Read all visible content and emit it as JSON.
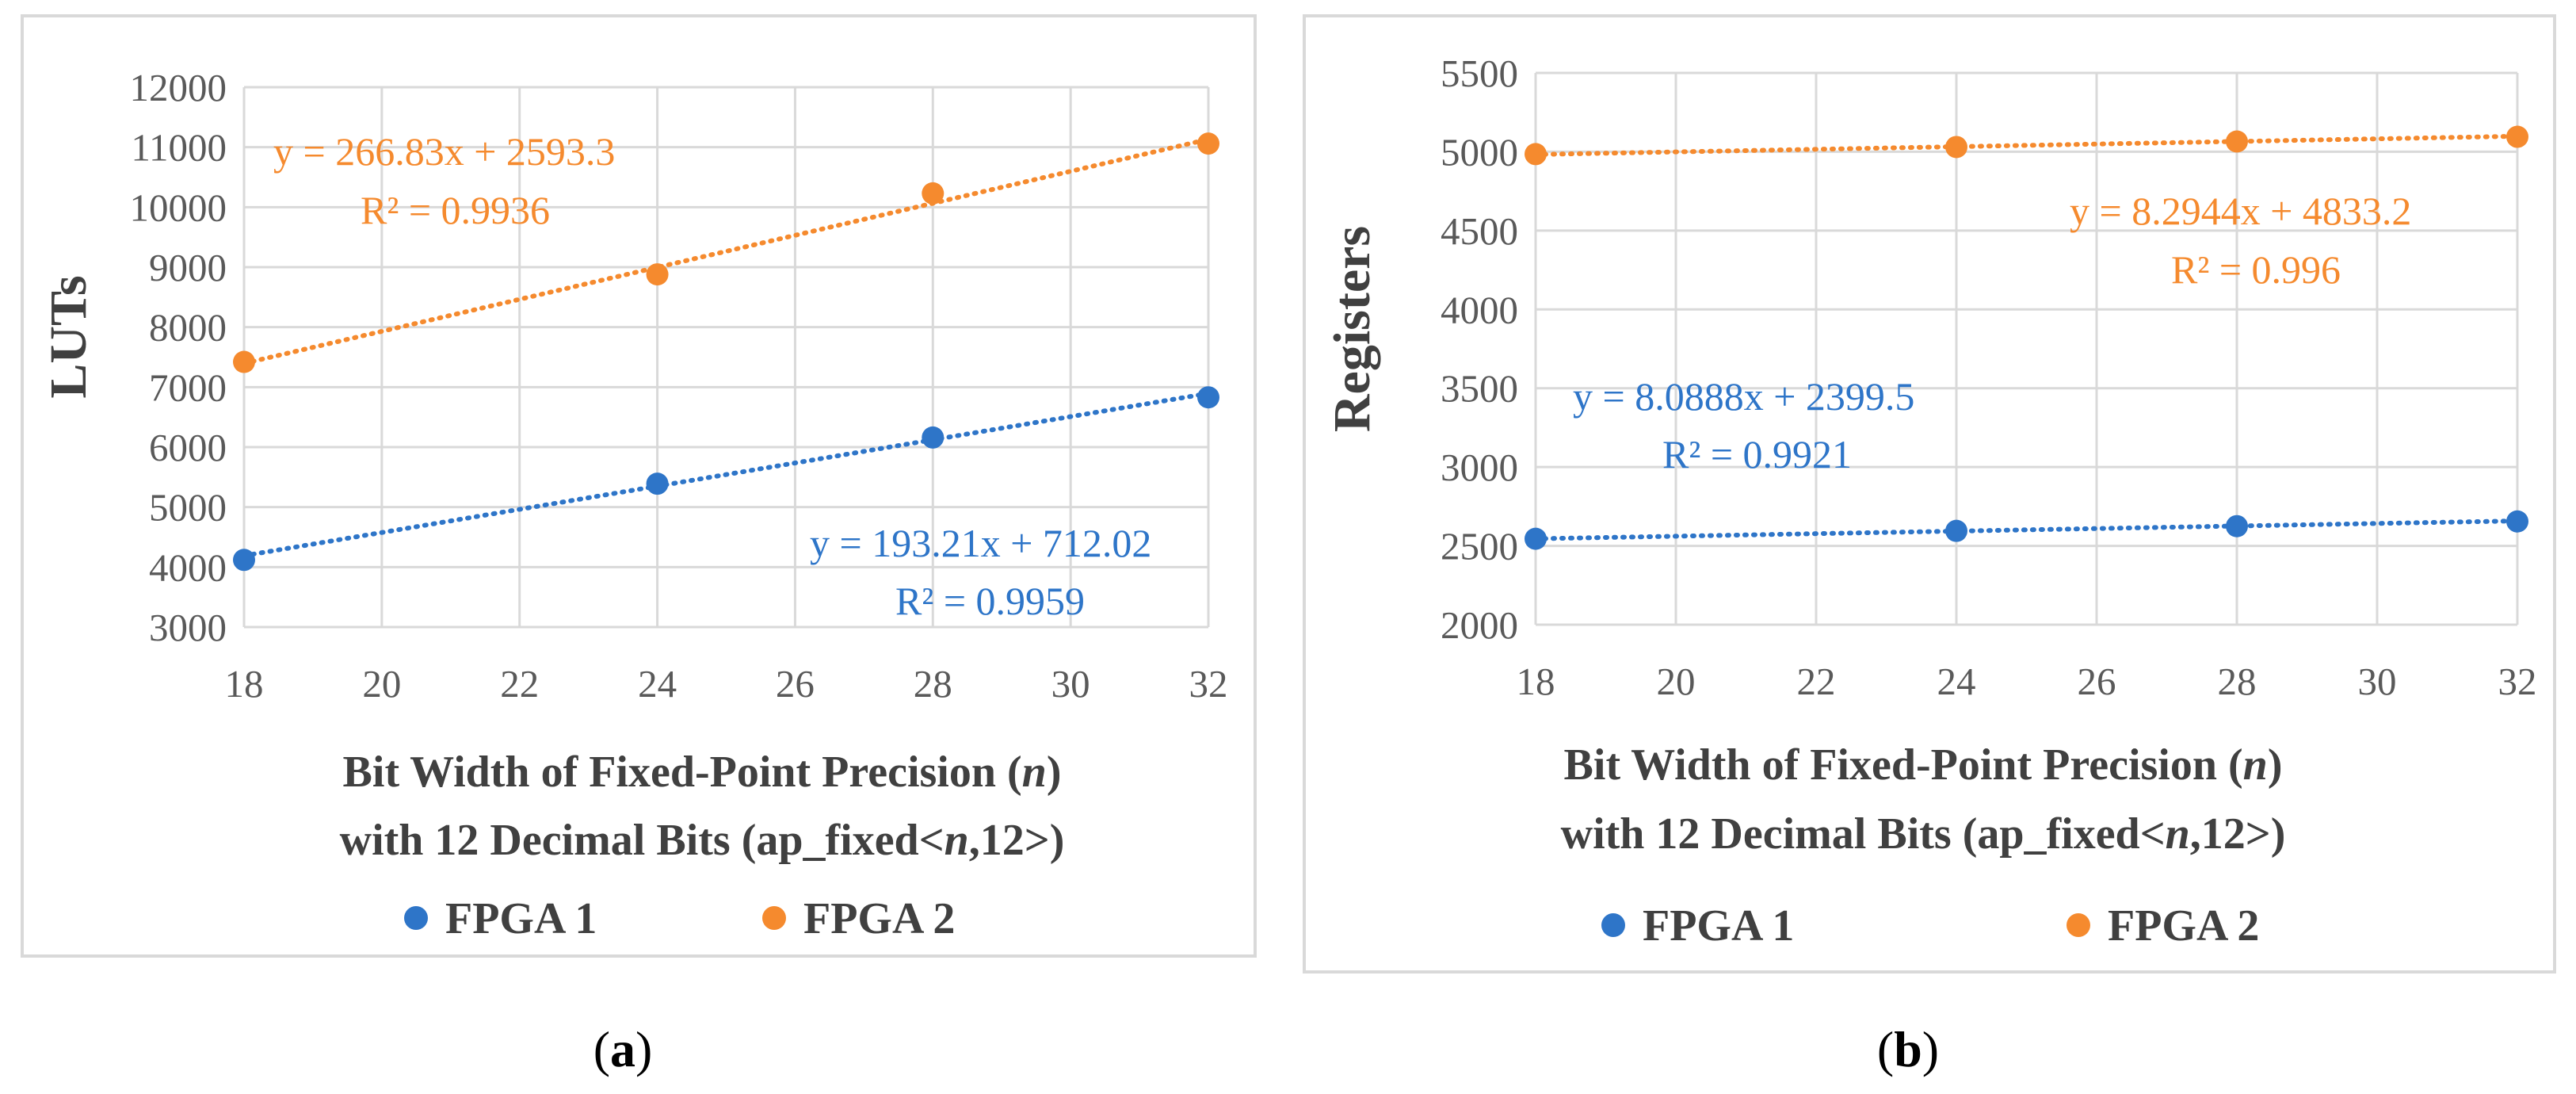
{
  "colors": {
    "fpga1": "#2e75c8",
    "fpga2": "#f58a2e",
    "grid": "#d9d9d9",
    "axis_text": "#595959",
    "label_text": "#404040",
    "frame": "#d9d9d9"
  },
  "chart_data": [
    {
      "type": "scatter",
      "panel_label": "(a)",
      "ylabel": "LUTs",
      "xlabel_line1": "Bit Width of Fixed-Point Precision (n)",
      "xlabel_line2": "with 12 Decimal Bits (ap_fixed<n,12>)",
      "xlim": [
        18,
        32
      ],
      "xticks": [
        18,
        20,
        22,
        24,
        26,
        28,
        30,
        32
      ],
      "ylim": [
        3000,
        12000
      ],
      "yticks": [
        3000,
        4000,
        5000,
        6000,
        7000,
        8000,
        9000,
        10000,
        11000,
        12000
      ],
      "series": [
        {
          "name": "FPGA 1",
          "x": [
            18,
            24,
            28,
            32
          ],
          "y": [
            4120,
            5390,
            6160,
            6830
          ],
          "trendline": {
            "slope": 193.21,
            "intercept": 712.02
          },
          "equation": "y = 193.21x + 712.02",
          "r2": "R² = 0.9959"
        },
        {
          "name": "FPGA 2",
          "x": [
            18,
            24,
            28,
            32
          ],
          "y": [
            7420,
            8880,
            10230,
            11060
          ],
          "trendline": {
            "slope": 266.83,
            "intercept": 2593.3
          },
          "equation": "y = 266.83x + 2593.3",
          "r2": "R² = 0.9936"
        }
      ],
      "legend": [
        "FPGA 1",
        "FPGA 2"
      ],
      "legend_position": "bottom"
    },
    {
      "type": "scatter",
      "panel_label": "(b)",
      "ylabel": "Registers",
      "xlabel_line1": "Bit Width of Fixed-Point Precision (n)",
      "xlabel_line2": "with 12 Decimal Bits (ap_fixed<n,12>)",
      "xlim": [
        18,
        32
      ],
      "xticks": [
        18,
        20,
        22,
        24,
        26,
        28,
        30,
        32
      ],
      "ylim": [
        2000,
        5500
      ],
      "yticks": [
        2000,
        2500,
        3000,
        3500,
        4000,
        4500,
        5000,
        5500
      ],
      "series": [
        {
          "name": "FPGA 1",
          "x": [
            18,
            24,
            28,
            32
          ],
          "y": [
            2545,
            2595,
            2625,
            2655
          ],
          "trendline": {
            "slope": 8.0888,
            "intercept": 2399.5
          },
          "equation": "y = 8.0888x + 2399.5",
          "r2": "R² = 0.9921"
        },
        {
          "name": "FPGA 2",
          "x": [
            18,
            24,
            28,
            32
          ],
          "y": [
            4985,
            5030,
            5065,
            5095
          ],
          "trendline": {
            "slope": 8.2944,
            "intercept": 4833.2
          },
          "equation": "y = 8.2944x + 4833.2",
          "r2": "R² = 0.996"
        }
      ],
      "legend": [
        "FPGA 1",
        "FPGA 2"
      ],
      "legend_position": "bottom"
    }
  ]
}
